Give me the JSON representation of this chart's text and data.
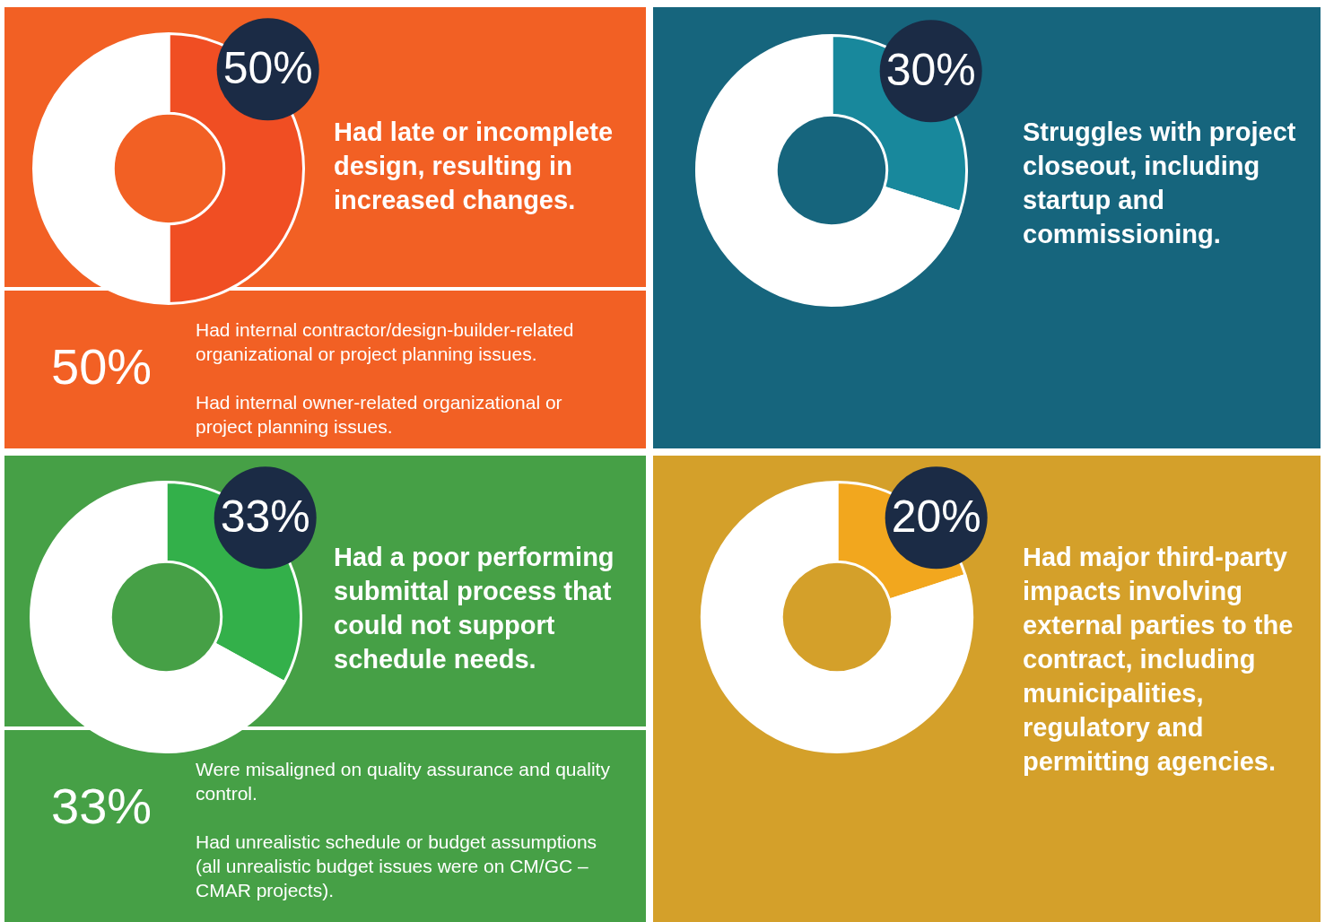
{
  "chart_data": [
    {
      "type": "donut",
      "title": "Had late or incomplete design, resulting in increased changes.",
      "categories": [
        null,
        null
      ],
      "values": [
        50,
        50
      ],
      "colors": [
        "#f04e23",
        "#ffffff"
      ],
      "value_labels": [
        "50%",
        null
      ]
    },
    {
      "type": "other",
      "title": "50%",
      "annotations": [
        "Had internal contractor/design-builder-related organizational or project planning issues.",
        "Had internal owner-related organizational or project planning issues."
      ]
    },
    {
      "type": "donut",
      "title": "Struggles with project closeout, including startup and commissioning.",
      "categories": [
        null,
        null
      ],
      "values": [
        30,
        70
      ],
      "colors": [
        "#18889c",
        "#ffffff"
      ],
      "value_labels": [
        "30%",
        null
      ]
    },
    {
      "type": "donut",
      "title": "Had a poor performing submittal process that could not support schedule needs.",
      "categories": [
        null,
        null
      ],
      "values": [
        33,
        67
      ],
      "colors": [
        "#33b04a",
        "#ffffff"
      ],
      "value_labels": [
        "33%",
        null
      ]
    },
    {
      "type": "other",
      "title": "33%",
      "annotations": [
        "Were misaligned on quality assurance and quality control.",
        "Had unrealistic schedule or budget assumptions (all unrealistic budget issues were on CM/GC – CMAR projects)."
      ]
    },
    {
      "type": "donut",
      "title": "Had major third-party impacts involving external parties to the contract, including municipalities, regulatory and permitting agencies.",
      "categories": [
        null,
        null
      ],
      "values": [
        20,
        80
      ],
      "colors": [
        "#f2a71e",
        "#ffffff"
      ],
      "value_labels": [
        "20%",
        null
      ]
    }
  ]
}
